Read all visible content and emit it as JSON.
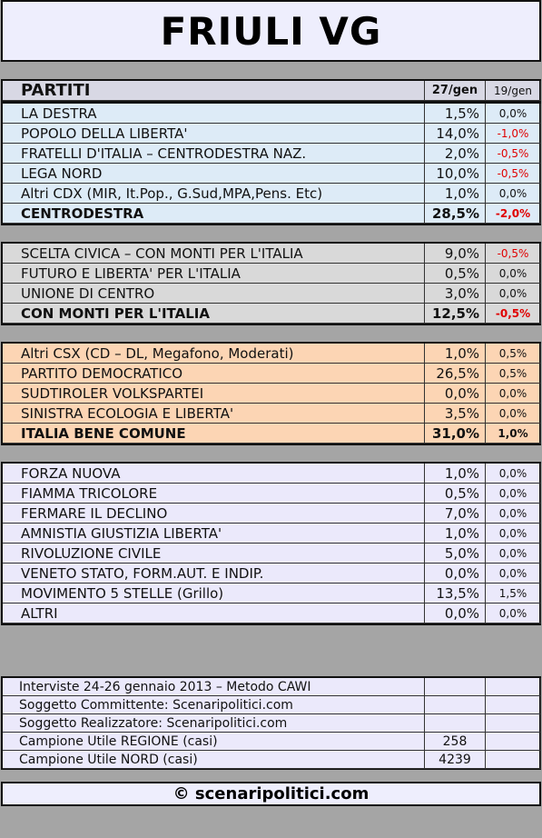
{
  "header": {
    "title": "FRIULI VG"
  },
  "table": {
    "columns": [
      "PARTITI",
      "27/gen",
      "19/gen"
    ],
    "sections": [
      {
        "rows": [
          [
            "LA DESTRA",
            "1,5%",
            "0,0%"
          ],
          [
            "POPOLO DELLA LIBERTA'",
            "14,0%",
            "-1,0%"
          ],
          [
            "FRATELLI D'ITALIA – CENTRODESTRA NAZ.",
            "2,0%",
            "-0,5%"
          ],
          [
            "LEGA NORD",
            "10,0%",
            "-0,5%"
          ],
          [
            "Altri CDX (MIR, It.Pop., G.Sud,MPA,Pens. Etc)",
            "1,0%",
            "0,0%"
          ]
        ],
        "total": [
          "CENTRODESTRA",
          "28,5%",
          "-2,0%"
        ]
      },
      {
        "rows": [
          [
            "SCELTA CIVICA – CON MONTI PER L'ITALIA",
            "9,0%",
            "-0,5%"
          ],
          [
            "FUTURO E LIBERTA' PER L'ITALIA",
            "0,5%",
            "0,0%"
          ],
          [
            "UNIONE DI CENTRO",
            "3,0%",
            "0,0%"
          ]
        ],
        "total": [
          "CON MONTI PER L'ITALIA",
          "12,5%",
          "-0,5%"
        ]
      },
      {
        "rows": [
          [
            "Altri CSX (CD – DL, Megafono, Moderati)",
            "1,0%",
            "0,5%"
          ],
          [
            "PARTITO DEMOCRATICO",
            "26,5%",
            "0,5%"
          ],
          [
            "SUDTIROLER VOLKSPARTEI",
            "0,0%",
            "0,0%"
          ],
          [
            "SINISTRA ECOLOGIA E LIBERTA'",
            "3,5%",
            "0,0%"
          ]
        ],
        "total": [
          "ITALIA BENE COMUNE",
          "31,0%",
          "1,0%"
        ]
      },
      {
        "rows": [
          [
            "FORZA NUOVA",
            "1,0%",
            "0,0%"
          ],
          [
            "FIAMMA TRICOLORE",
            "0,5%",
            "0,0%"
          ],
          [
            "FERMARE IL DECLINO",
            "7,0%",
            "0,0%"
          ],
          [
            "AMNISTIA GIUSTIZIA LIBERTA'",
            "1,0%",
            "0,0%"
          ],
          [
            "RIVOLUZIONE CIVILE",
            "5,0%",
            "0,0%"
          ],
          [
            "VENETO STATO, FORM.AUT. E INDIP.",
            "0,0%",
            "0,0%"
          ],
          [
            "MOVIMENTO 5 STELLE (Grillo)",
            "13,5%",
            "1,5%"
          ],
          [
            "ALTRI",
            "0,0%",
            "0,0%"
          ]
        ]
      }
    ]
  },
  "info": [
    [
      "Interviste 24-26 gennaio 2013 – Metodo CAWI"
    ],
    [
      "Soggetto Committente: Scenaripolitici.com"
    ],
    [
      "Soggetto Realizzatore: Scenaripolitici.com"
    ],
    [
      "Campione Utile REGIONE (casi)",
      "258"
    ],
    [
      "Campione Utile NORD (casi)",
      "4239"
    ]
  ],
  "footer": "© scenaripolitici.com"
}
